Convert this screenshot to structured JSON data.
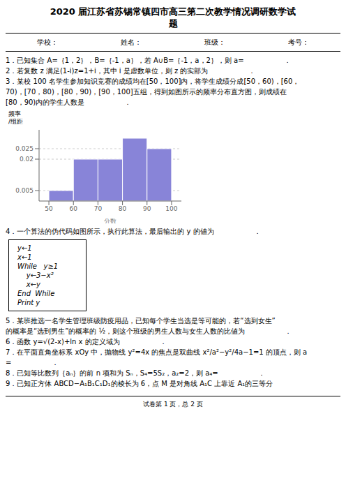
{
  "chart_data": {
    "type": "histogram",
    "title": "2020 届江苏省苏锡常镇四市高三第二次教学情况调研数学试\n题",
    "bins": [
      50,
      60,
      70,
      80,
      90,
      100
    ],
    "values": [
      0.005,
      0.02,
      0.02,
      0.03,
      0.025
    ],
    "xlim": [
      46,
      104
    ],
    "ylim": [
      0,
      0.034
    ],
    "xticks": [
      50,
      60,
      70,
      80,
      90,
      100
    ],
    "yticks": [
      0.005,
      0.02,
      0.025
    ],
    "x_label": "分数",
    "y_label": "频率\n/组距",
    "grid": true,
    "annotations": [
      [
        "学校：",
        "姓名：",
        "班级：",
        "考号："
      ],
      [
        "1．已知集合 A=｛1，2｝，B=｛-1，a｝，若 A∪B=｛-1，a，2｝，则 a=                  ．",
        "2．若复数 z 满足(1-i)z=1+i，其中 i 是虚数单位，则 z 的实部为                  ．",
        "3．某校 100 名学生参加知识竞赛的成绩均在[50，100]内，将学生成绩分成[50，60)，[60，",
        "70)，[70，80)，[80，90)，[90，100]五组，得到如图所示的频率分布直方图，则成绩在",
        "[80，90)内的学生人数是                  ．"
      ],
      [
        "4．一个算法的伪代码如图所示，执行此算法，最后输出的 y 的値为                  ．"
      ],
      [
        "y←1",
        "x←1",
        "While   y≥1",
        "    y←3−x²",
        "    x←y",
        "End  While",
        "Print y"
      ],
      [
        "5．某班推选一名学生管理班级防疫用品，已知每个学生当选是等可能的，若“选到女生”",
        "的概率是“选到男生”的概率的 ½，则这个班级的男生人数与女生人数的比値为                  ．",
        "6．函数 y=√(2-x)+ln x 的定义域为                  ．",
        "7．在平面直角坐标系 xOy 中，抛物线 y²=4x 的焦点是双曲线 x²/a²−y²/4a−1=1 的顶点，则 a",
        "=                  ．",
        "8．已知等比数列｛aₙ｝的前 n 项和为 Sₙ，S₄=5S₂，a₂=2，则 a₄=                  ．",
        "9．已知正方体 ABCD−A₁B₁C₁D₁的棱长为 6，点 M 是对角线 A₁C 上靠近 A₁的三等分"
      ],
      [
        "试卷第 1 页，总 2 页"
      ]
    ]
  }
}
